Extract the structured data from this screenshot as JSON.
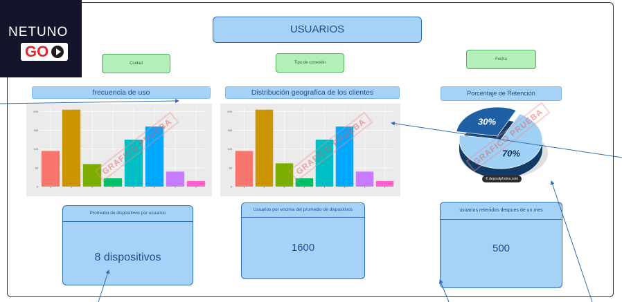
{
  "brand": {
    "word": "NETUNO",
    "go": "GO"
  },
  "title": "USUARIOS",
  "filters": [
    "Ciudad",
    "Tipo de conexión",
    "Fecha"
  ],
  "sections": {
    "freq": "frecuencia de uso",
    "geo": "Distribución  geografica de los clientes",
    "ret": "Porcentaje de Retención"
  },
  "watermark": "GRAFICO PRUEBA",
  "kpis": [
    {
      "label": "Promedio de dispositivos por usuarios",
      "value": "8 dispositivos"
    },
    {
      "label": "Usuarios por encima del promedio de dispositivos",
      "value": "1600"
    },
    {
      "label": "usuarios retenidos despues de un mes",
      "value": "500"
    }
  ],
  "pie": {
    "credit": "© depositphotos.com"
  },
  "chart_data": [
    {
      "type": "bar",
      "title": "frecuencia de uso",
      "ylim": [
        0,
        210
      ],
      "yticks": [
        "0",
        "50",
        "100",
        "150",
        "200"
      ],
      "values": [
        95,
        205,
        60,
        22,
        125,
        160,
        40,
        15
      ],
      "colors": [
        "#f8766d",
        "#cd9600",
        "#7cae00",
        "#00be67",
        "#00bfc4",
        "#00a9ff",
        "#c77cff",
        "#ff61cc"
      ],
      "grid": true
    },
    {
      "type": "bar",
      "title": "Distribución  geografica de los clientes",
      "ylim": [
        0,
        210
      ],
      "yticks": [
        "0",
        "50",
        "100",
        "150",
        "200"
      ],
      "values": [
        95,
        205,
        62,
        22,
        125,
        160,
        40,
        15
      ],
      "colors": [
        "#f8766d",
        "#cd9600",
        "#7cae00",
        "#00be67",
        "#00bfc4",
        "#00a9ff",
        "#c77cff",
        "#ff61cc"
      ],
      "grid": true
    },
    {
      "type": "pie",
      "title": "Porcentaje de Retención",
      "values": [
        30,
        70
      ],
      "labels": [
        "30%",
        "70%"
      ],
      "colors": [
        "#1f5fa3",
        "#9fd0f5"
      ]
    }
  ]
}
